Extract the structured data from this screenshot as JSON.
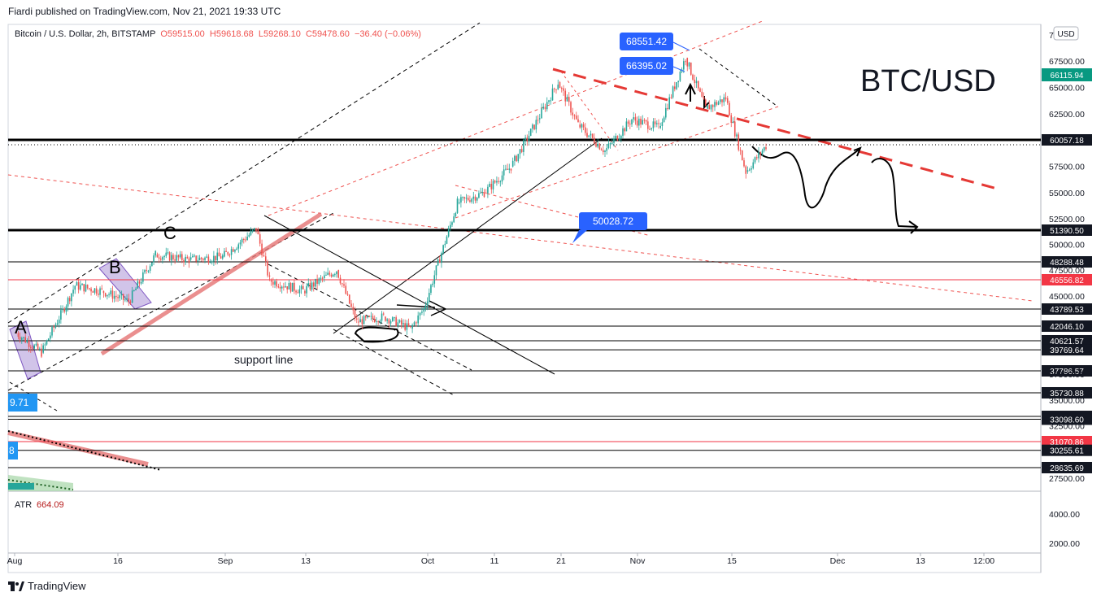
{
  "header": {
    "published": "Fiardi published on TradingView.com, Nov 21, 2021 19:33 UTC",
    "symbol": "Bitcoin / U.S. Dollar, 2h, BITSTAMP",
    "ohlc": {
      "o": "O59515.00",
      "h": "H59618.68",
      "l": "L59268.10",
      "c": "C59478.60",
      "chg": "−36.40 (−0.06%)"
    }
  },
  "currency_badge": "USD",
  "big_label": "BTC/USD",
  "footer": {
    "brand": "TradingView"
  },
  "chart_data": {
    "type": "line",
    "title": "Bitcoin / U.S. Dollar, 2h, BITSTAMP",
    "price_axis_ticks": [
      "67500.00",
      "65000.00",
      "62500.00",
      "57500.00",
      "55000.00",
      "52500.00",
      "50000.00",
      "47500.00",
      "45000.00",
      "37500.00",
      "35000.00",
      "32500.00",
      "27500.00"
    ],
    "price_axis_top_partial": "7(",
    "atr_axis_ticks": [
      "4000.00",
      "2000.00"
    ],
    "time_axis_ticks": [
      "Aug",
      "16",
      "Sep",
      "13",
      "Oct",
      "11",
      "21",
      "Nov",
      "15",
      "Dec",
      "13",
      "12:00"
    ],
    "series_approx": {
      "name": "",
      "x": [
        "Aug 1",
        "Aug 5",
        "Aug 10",
        "Aug 14",
        "Aug 18",
        "Aug 22",
        "Aug 27",
        "Sep 1",
        "Sep 6",
        "Sep 8",
        "Sep 13",
        "Sep 18",
        "Sep 21",
        "Sep 25",
        "Sep 29",
        "Oct 1",
        "Oct 6",
        "Oct 10",
        "Oct 14",
        "Oct 18",
        "Oct 21",
        "Oct 24",
        "Oct 28",
        "Nov 1",
        "Nov 5",
        "Nov 9",
        "Nov 12",
        "Nov 15",
        "Nov 18",
        "Nov 21"
      ],
      "y": [
        41500,
        39500,
        46000,
        45500,
        44500,
        49000,
        48500,
        48800,
        51500,
        46500,
        45500,
        47500,
        42500,
        43000,
        41800,
        43800,
        54000,
        55000,
        57500,
        62000,
        65500,
        61500,
        59000,
        62000,
        61200,
        67800,
        63000,
        64000,
        57000,
        59480
      ]
    },
    "price_levels": [
      {
        "value": "60057.18",
        "style": "black"
      },
      {
        "value": "51390.50",
        "style": "black"
      },
      {
        "value": "48288.48",
        "style": "black"
      },
      {
        "value": "46556.82",
        "style": "red"
      },
      {
        "value": "43789.53",
        "style": "black"
      },
      {
        "value": "42046.10",
        "style": "black"
      },
      {
        "value": "40621.57",
        "style": "black"
      },
      {
        "value": "39769.64",
        "style": "black"
      },
      {
        "value": "37786.57",
        "style": "black"
      },
      {
        "value": "35730.88",
        "style": "black"
      },
      {
        "value": "33354.22",
        "style": "black"
      },
      {
        "value": "33098.60",
        "style": "black"
      },
      {
        "value": "31070.86",
        "style": "red"
      },
      {
        "value": "30255.61",
        "style": "black"
      },
      {
        "value": "28635.69",
        "style": "black"
      }
    ],
    "current_price": "66115.94",
    "callouts": [
      "68551.42",
      "66395.02",
      "50028.72"
    ],
    "partial_left_labels": [
      "9.71",
      "8"
    ],
    "annotations": [
      "A",
      "B",
      "C",
      "support line"
    ],
    "atr": {
      "label": "ATR",
      "value": "664.09"
    },
    "colors": {
      "up": "#26a69a",
      "down": "#ef5350",
      "callout": "#2962ff",
      "current": "#089981",
      "accent_red": "#f23645"
    }
  }
}
